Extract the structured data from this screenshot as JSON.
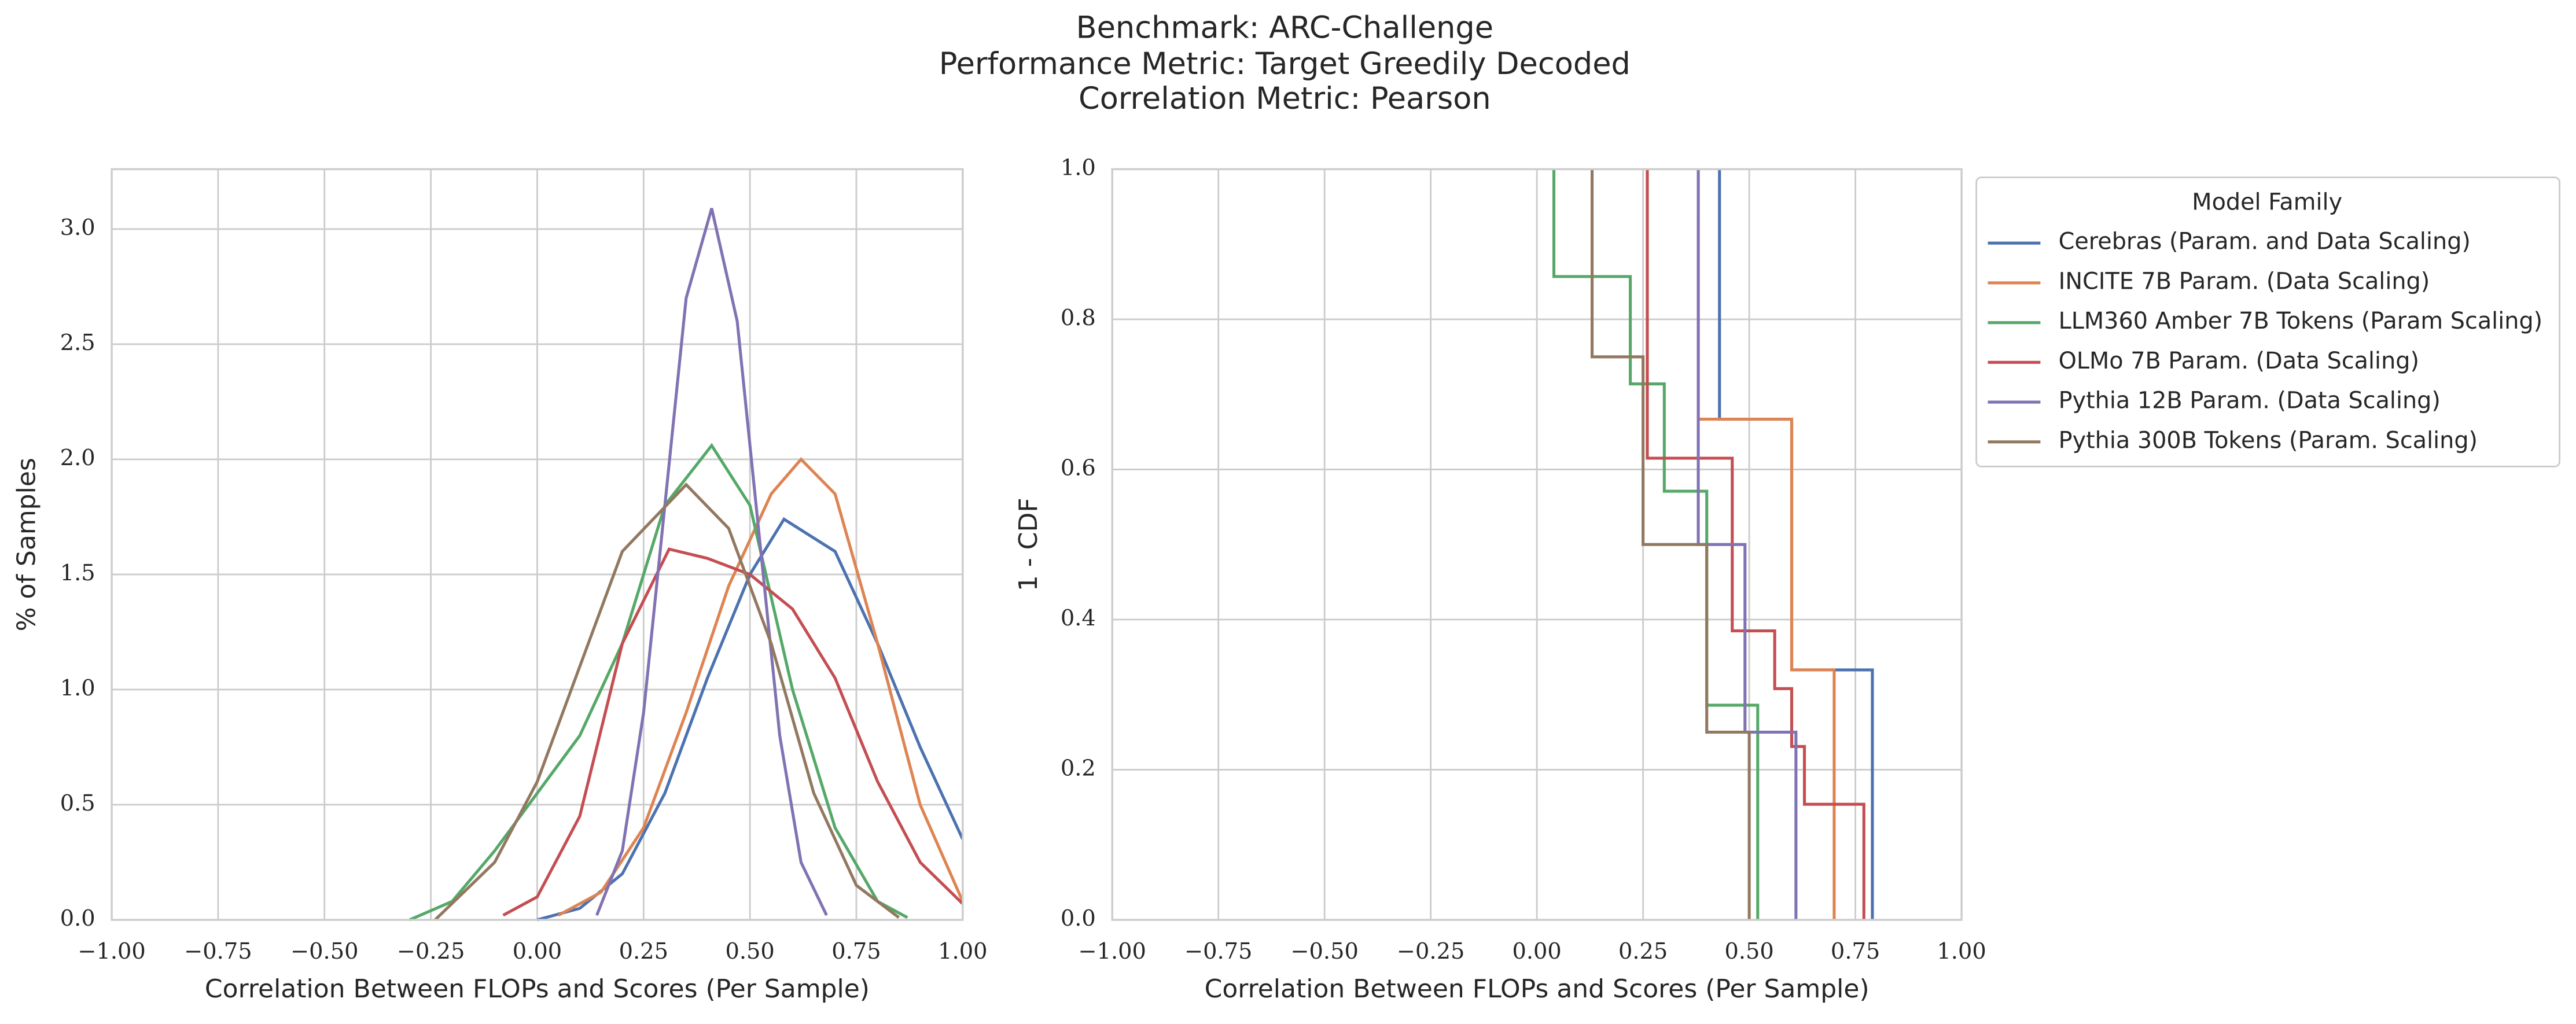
{
  "figure": {
    "title_lines": [
      "Benchmark: ARC-Challenge",
      "Performance Metric: Target Greedily Decoded",
      "Correlation Metric: Pearson"
    ]
  },
  "chart_data": [
    {
      "type": "line",
      "xlabel": "Correlation Between FLOPs and Scores (Per Sample)",
      "ylabel": "% of Samples",
      "xlim": [
        -1,
        1
      ],
      "ylim": [
        0,
        3.26
      ],
      "grid": true,
      "xticks": [
        {
          "value": -1,
          "label": "−1.00"
        },
        {
          "value": -0.75,
          "label": "−0.75"
        },
        {
          "value": -0.5,
          "label": "−0.50"
        },
        {
          "value": -0.25,
          "label": "−0.25"
        },
        {
          "value": 0,
          "label": "0.00"
        },
        {
          "value": 0.25,
          "label": "0.25"
        },
        {
          "value": 0.5,
          "label": "0.50"
        },
        {
          "value": 0.75,
          "label": "0.75"
        },
        {
          "value": 1,
          "label": "1.00"
        }
      ],
      "yticks": [
        {
          "value": 0,
          "label": "0.0"
        },
        {
          "value": 0.5,
          "label": "0.5"
        },
        {
          "value": 1,
          "label": "1.0"
        },
        {
          "value": 1.5,
          "label": "1.5"
        },
        {
          "value": 2,
          "label": "2.0"
        },
        {
          "value": 2.5,
          "label": "2.5"
        },
        {
          "value": 3,
          "label": "3.0"
        }
      ],
      "series": [
        {
          "color": "#4c72b0",
          "x": [
            0,
            0.1,
            0.2,
            0.3,
            0.4,
            0.5,
            0.58,
            0.7,
            0.8,
            0.9,
            1.0
          ],
          "values": [
            0.0,
            0.05,
            0.2,
            0.55,
            1.05,
            1.5,
            1.74,
            1.6,
            1.2,
            0.75,
            0.35
          ]
        },
        {
          "color": "#dd8452",
          "x": [
            0.05,
            0.15,
            0.25,
            0.35,
            0.45,
            0.55,
            0.62,
            0.7,
            0.8,
            0.9,
            1.0
          ],
          "values": [
            0.02,
            0.12,
            0.4,
            0.9,
            1.45,
            1.85,
            2.0,
            1.85,
            1.2,
            0.5,
            0.08
          ]
        },
        {
          "color": "#55a868",
          "x": [
            -0.3,
            -0.2,
            -0.1,
            0,
            0.1,
            0.2,
            0.3,
            0.41,
            0.5,
            0.6,
            0.7,
            0.8,
            0.87
          ],
          "values": [
            0,
            0.08,
            0.3,
            0.55,
            0.8,
            1.2,
            1.8,
            2.06,
            1.8,
            1.0,
            0.4,
            0.08,
            0.01
          ]
        },
        {
          "color": "#c44e52",
          "x": [
            -0.08,
            0,
            0.1,
            0.2,
            0.31,
            0.4,
            0.5,
            0.6,
            0.7,
            0.8,
            0.9,
            1.0
          ],
          "values": [
            0.02,
            0.1,
            0.45,
            1.2,
            1.61,
            1.57,
            1.5,
            1.35,
            1.05,
            0.6,
            0.25,
            0.07
          ]
        },
        {
          "color": "#8172b3",
          "x": [
            0.14,
            0.2,
            0.25,
            0.3,
            0.35,
            0.41,
            0.47,
            0.52,
            0.57,
            0.62,
            0.68
          ],
          "values": [
            0.02,
            0.3,
            0.9,
            1.8,
            2.7,
            3.09,
            2.6,
            1.7,
            0.8,
            0.25,
            0.02
          ]
        },
        {
          "color": "#937860",
          "x": [
            -0.24,
            -0.1,
            0,
            0.1,
            0.2,
            0.35,
            0.45,
            0.55,
            0.65,
            0.75,
            0.85
          ],
          "values": [
            0,
            0.25,
            0.6,
            1.1,
            1.6,
            1.89,
            1.7,
            1.2,
            0.55,
            0.15,
            0.01
          ]
        }
      ]
    },
    {
      "type": "step",
      "xlabel": "Correlation Between FLOPs and Scores (Per Sample)",
      "ylabel": "1 - CDF",
      "xlim": [
        -1,
        1
      ],
      "ylim": [
        0,
        1
      ],
      "grid": true,
      "legend_title": "Model Family",
      "legend": "outside-upper-right",
      "xticks": [
        {
          "value": -1,
          "label": "−1.00"
        },
        {
          "value": -0.75,
          "label": "−0.75"
        },
        {
          "value": -0.5,
          "label": "−0.50"
        },
        {
          "value": -0.25,
          "label": "−0.25"
        },
        {
          "value": 0,
          "label": "0.00"
        },
        {
          "value": 0.25,
          "label": "0.25"
        },
        {
          "value": 0.5,
          "label": "0.50"
        },
        {
          "value": 0.75,
          "label": "0.75"
        },
        {
          "value": 1,
          "label": "1.00"
        }
      ],
      "yticks": [
        {
          "value": 0,
          "label": "0.0"
        },
        {
          "value": 0.2,
          "label": "0.2"
        },
        {
          "value": 0.4,
          "label": "0.4"
        },
        {
          "value": 0.6,
          "label": "0.6"
        },
        {
          "value": 0.8,
          "label": "0.8"
        },
        {
          "value": 1,
          "label": "1.0"
        }
      ],
      "series": [
        {
          "name": "Cerebras (Param. and Data Scaling)",
          "color": "#4c72b0",
          "x": [
            0.43,
            0.43,
            0.6,
            0.79
          ],
          "values": [
            1,
            0.667,
            0.333,
            0
          ]
        },
        {
          "name": "INCITE 7B Param. (Data Scaling)",
          "color": "#dd8452",
          "x": [
            0.38,
            0.38,
            0.6,
            0.7
          ],
          "values": [
            1,
            0.667,
            0.333,
            0
          ]
        },
        {
          "name": "LLM360 Amber 7B Tokens (Param Scaling)",
          "color": "#55a868",
          "x": [
            0.04,
            0.04,
            0.22,
            0.3,
            0.4,
            0.52
          ],
          "values": [
            1,
            0.857,
            0.714,
            0.571,
            0.286,
            0
          ]
        },
        {
          "name": "OLMo 7B Param. (Data Scaling)",
          "color": "#c44e52",
          "x": [
            0.26,
            0.26,
            0.46,
            0.56,
            0.6,
            0.63,
            0.77
          ],
          "values": [
            1,
            0.615,
            0.385,
            0.308,
            0.231,
            0.154,
            0
          ]
        },
        {
          "name": "Pythia 12B Param. (Data Scaling)",
          "color": "#8172b3",
          "x": [
            0.38,
            0.38,
            0.49,
            0.61
          ],
          "values": [
            1,
            0.5,
            0.25,
            0
          ]
        },
        {
          "name": "Pythia 300B Tokens (Param. Scaling)",
          "color": "#937860",
          "x": [
            0.13,
            0.13,
            0.25,
            0.4,
            0.5
          ],
          "values": [
            1,
            0.75,
            0.5,
            0.25,
            0
          ]
        }
      ]
    }
  ]
}
